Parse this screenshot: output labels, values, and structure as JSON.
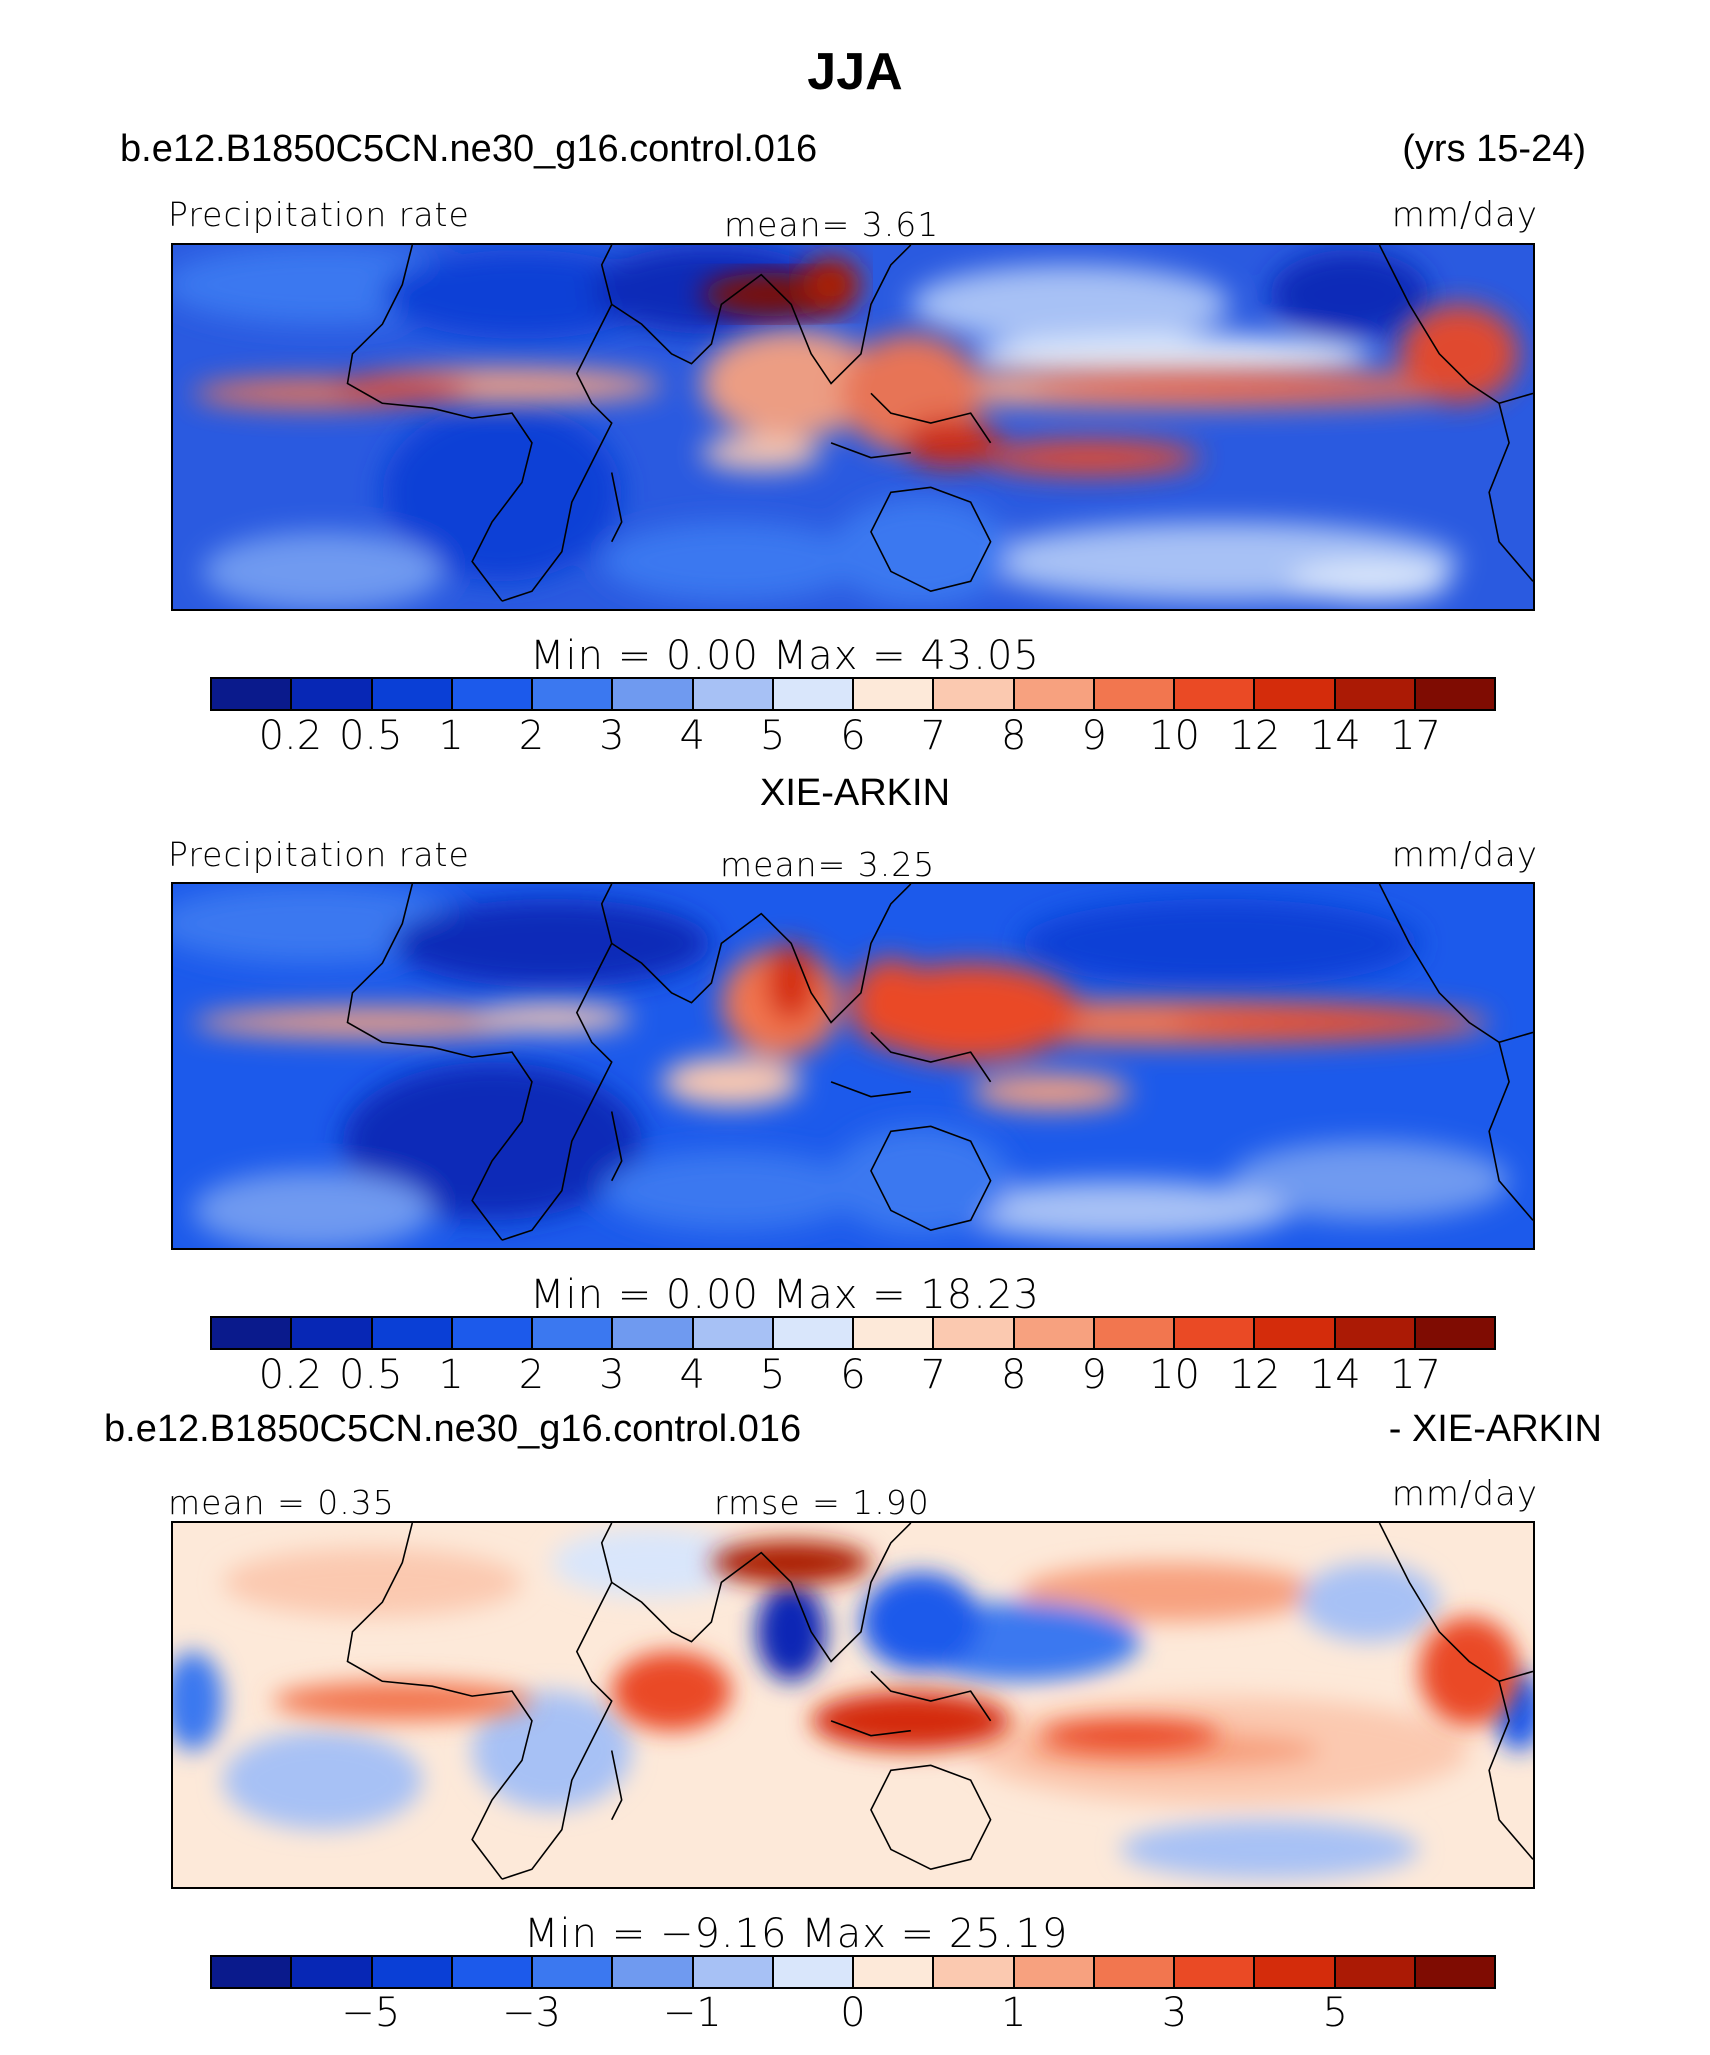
{
  "page_title": "JJA",
  "header": {
    "case": "b.e12.B1850C5CN.ne30_g16.control.016",
    "years": "(yrs 15-24)"
  },
  "panels": [
    {
      "heading": "",
      "left_label": "Precipitation rate",
      "center_label": "mean=    3.61",
      "units": "mm/day",
      "minmax": "Min  =    0.00  Max  =   43.05"
    },
    {
      "heading": "XIE-ARKIN",
      "left_label": "Precipitation rate",
      "center_label": "mean=    3.25",
      "units": "mm/day",
      "minmax": "Min  =    0.00  Max  =   18.23"
    },
    {
      "heading_left": "b.e12.B1850C5CN.ne30_g16.control.016",
      "heading_right": "- XIE-ARKIN",
      "left_label": "mean  =    0.35",
      "center_label": "rmse  =    1.90",
      "units": "mm/day",
      "minmax": "Min  =   −9.16  Max  =   25.19"
    }
  ],
  "colorbar_abs": {
    "colors": [
      "#0a1a8c",
      "#0727b5",
      "#0a3fd6",
      "#1c5aeb",
      "#3b78f0",
      "#6f9af0",
      "#a7c1f5",
      "#d9e6fb",
      "#fde9d9",
      "#fbc9b0",
      "#f7a17f",
      "#f2764f",
      "#ea4a25",
      "#d42c0b",
      "#ab1a05",
      "#7f0c02"
    ],
    "ticks": [
      "0.2",
      "0.5",
      "1",
      "2",
      "3",
      "4",
      "5",
      "6",
      "7",
      "8",
      "9",
      "10",
      "12",
      "14",
      "17"
    ]
  },
  "colorbar_diff": {
    "colors": [
      "#0a1a8c",
      "#0727b5",
      "#0a3fd6",
      "#1c5aeb",
      "#3b78f0",
      "#6f9af0",
      "#a7c1f5",
      "#d9e6fb",
      "#fde9d9",
      "#fbc9b0",
      "#f7a17f",
      "#f2764f",
      "#ea4a25",
      "#d42c0b",
      "#ab1a05",
      "#7f0c02"
    ],
    "ticks": [
      "−5",
      "−3",
      "−1",
      "0",
      "1",
      "3",
      "5"
    ]
  }
}
